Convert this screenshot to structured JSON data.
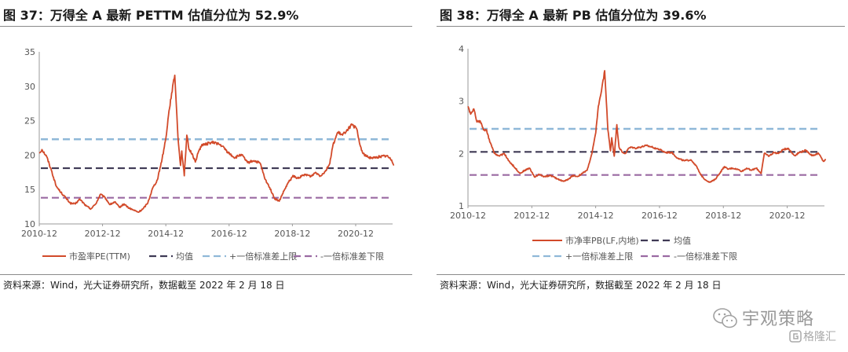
{
  "charts": [
    {
      "title": "图 37：万得全 A 最新 PETTM 估值分位为 52.9%",
      "source": "资料来源：Wind，光大证券研究所，数据截至 2022 年 2 月 18 日",
      "chart_data": {
        "type": "line",
        "x_ticks": [
          "2010-12",
          "2012-12",
          "2014-12",
          "2016-12",
          "2018-12",
          "2020-12"
        ],
        "x_range": [
          "2010-12",
          "2022-02"
        ],
        "y_ticks": [
          10,
          15,
          20,
          25,
          30,
          35
        ],
        "ylim": [
          10,
          35
        ],
        "grid": false,
        "legend_position": "bottom",
        "series": [
          {
            "name": "市盈率PE(TTM)",
            "color": "#d24a2a",
            "style": "solid",
            "x": [
              2010.92,
              2011.0,
              2011.15,
              2011.3,
              2011.45,
              2011.6,
              2011.75,
              2011.9,
              2012.05,
              2012.2,
              2012.4,
              2012.55,
              2012.7,
              2012.85,
              2013.0,
              2013.15,
              2013.3,
              2013.45,
              2013.6,
              2013.75,
              2013.9,
              2014.05,
              2014.2,
              2014.35,
              2014.5,
              2014.65,
              2014.8,
              2014.92,
              2015.0,
              2015.1,
              2015.2,
              2015.3,
              2015.38,
              2015.42,
              2015.5,
              2015.58,
              2015.65,
              2015.75,
              2015.85,
              2015.95,
              2016.05,
              2016.15,
              2016.3,
              2016.5,
              2016.7,
              2016.9,
              2017.1,
              2017.3,
              2017.5,
              2017.7,
              2017.9,
              2018.05,
              2018.2,
              2018.35,
              2018.5,
              2018.65,
              2018.8,
              2018.95,
              2019.05,
              2019.2,
              2019.35,
              2019.5,
              2019.65,
              2019.8,
              2019.95,
              2020.1,
              2020.2,
              2020.35,
              2020.5,
              2020.65,
              2020.8,
              2020.95,
              2021.05,
              2021.15,
              2021.3,
              2021.5,
              2021.7,
              2021.9,
              2022.05,
              2022.13
            ],
            "values": [
              20.3,
              20.8,
              19.8,
              17.8,
              15.5,
              14.6,
              13.8,
              13.0,
              12.9,
              13.6,
              12.6,
              12.2,
              12.9,
              14.3,
              13.8,
              12.8,
              13.2,
              12.4,
              12.9,
              12.3,
              12.0,
              11.7,
              12.2,
              13.1,
              15.2,
              16.4,
              19.5,
              22.5,
              25.8,
              29.0,
              31.6,
              22.7,
              18.5,
              20.6,
              17.0,
              22.9,
              20.8,
              20.2,
              19.0,
              20.5,
              21.5,
              21.5,
              21.8,
              21.8,
              21.3,
              20.3,
              19.6,
              20.1,
              18.9,
              19.2,
              18.8,
              16.5,
              15.3,
              13.7,
              13.3,
              14.8,
              16.1,
              17.0,
              16.6,
              16.9,
              17.2,
              16.9,
              17.5,
              17.0,
              17.6,
              18.8,
              21.5,
              23.3,
              22.9,
              23.7,
              24.4,
              23.8,
              21.5,
              20.2,
              19.7,
              19.6,
              19.8,
              19.9,
              19.3,
              18.6
            ]
          },
          {
            "name": "均值",
            "color": "#3f3a55",
            "style": "dashed",
            "constant": 18.1
          },
          {
            "name": "+一倍标准差上限",
            "color": "#8fb8d8",
            "style": "dashed",
            "constant": 22.3
          },
          {
            "name": "-一倍标准差下限",
            "color": "#9a6aa2",
            "style": "dashed",
            "constant": 13.8
          }
        ]
      }
    },
    {
      "title": "图 38：万得全 A 最新 PB 估值分位为 39.6%",
      "source": "资料来源：Wind，光大证券研究所，数据截至 2022 年 2 月 18 日",
      "chart_data": {
        "type": "line",
        "x_ticks": [
          "2010-12",
          "2012-12",
          "2014-12",
          "2016-12",
          "2018-12",
          "2020-12"
        ],
        "x_range": [
          "2010-12",
          "2022-02"
        ],
        "y_ticks": [
          1,
          2,
          3,
          4
        ],
        "ylim": [
          1,
          4
        ],
        "grid": false,
        "legend_position": "bottom",
        "series": [
          {
            "name": "市净率PB(LF,内地)",
            "color": "#d24a2a",
            "style": "solid",
            "x": [
              2010.92,
              2011.0,
              2011.1,
              2011.2,
              2011.3,
              2011.4,
              2011.5,
              2011.6,
              2011.75,
              2011.9,
              2012.05,
              2012.2,
              2012.4,
              2012.55,
              2012.7,
              2012.85,
              2013.0,
              2013.15,
              2013.3,
              2013.5,
              2013.7,
              2013.9,
              2014.05,
              2014.2,
              2014.35,
              2014.5,
              2014.65,
              2014.8,
              2014.92,
              2015.0,
              2015.1,
              2015.2,
              2015.3,
              2015.38,
              2015.42,
              2015.5,
              2015.58,
              2015.65,
              2015.75,
              2015.85,
              2015.95,
              2016.05,
              2016.15,
              2016.3,
              2016.5,
              2016.7,
              2016.9,
              2017.1,
              2017.3,
              2017.5,
              2017.7,
              2017.9,
              2018.05,
              2018.2,
              2018.35,
              2018.5,
              2018.65,
              2018.8,
              2018.95,
              2019.05,
              2019.2,
              2019.35,
              2019.5,
              2019.65,
              2019.8,
              2019.95,
              2020.1,
              2020.2,
              2020.35,
              2020.5,
              2020.65,
              2020.8,
              2020.95,
              2021.05,
              2021.15,
              2021.3,
              2021.5,
              2021.7,
              2021.9,
              2022.05,
              2022.13
            ],
            "values": [
              2.9,
              2.75,
              2.85,
              2.6,
              2.62,
              2.45,
              2.45,
              2.22,
              2.0,
              1.95,
              2.0,
              1.86,
              1.72,
              1.62,
              1.68,
              1.72,
              1.55,
              1.6,
              1.56,
              1.58,
              1.52,
              1.47,
              1.5,
              1.58,
              1.56,
              1.62,
              1.68,
              2.0,
              2.4,
              2.9,
              3.2,
              3.58,
              2.45,
              2.05,
              2.3,
              1.95,
              2.55,
              2.12,
              2.02,
              2.0,
              2.1,
              2.12,
              2.1,
              2.12,
              2.15,
              2.12,
              2.08,
              2.02,
              2.02,
              1.9,
              1.86,
              1.88,
              1.78,
              1.6,
              1.5,
              1.45,
              1.5,
              1.62,
              1.75,
              1.7,
              1.72,
              1.7,
              1.66,
              1.72,
              1.68,
              1.72,
              1.62,
              2.0,
              1.95,
              2.02,
              2.0,
              2.08,
              2.1,
              2.02,
              1.96,
              2.02,
              2.06,
              1.96,
              2.0,
              1.85,
              1.88
            ]
          },
          {
            "name": "均值",
            "color": "#3f3a55",
            "style": "dashed",
            "constant": 2.03
          },
          {
            "name": "+一倍标准差上限",
            "color": "#8fb8d8",
            "style": "dashed",
            "constant": 2.47
          },
          {
            "name": "-一倍标准差下限",
            "color": "#9a6aa2",
            "style": "dashed",
            "constant": 1.59
          }
        ]
      }
    }
  ],
  "watermark": {
    "name": "宇观策略",
    "sub": "格隆汇"
  }
}
